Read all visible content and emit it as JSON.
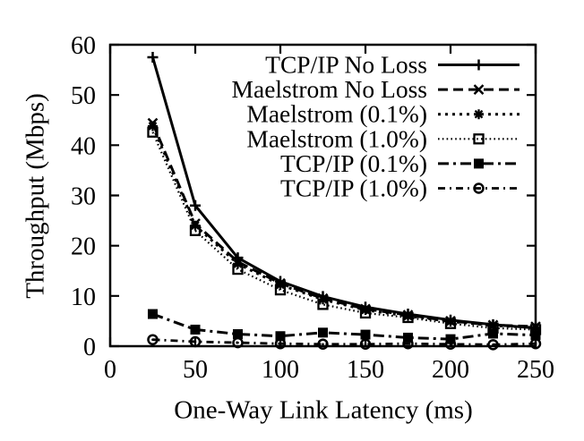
{
  "figure": {
    "background": "#ffffff",
    "ink": "#000000"
  },
  "chart_data": {
    "type": "line",
    "title": "",
    "xlabel": "One-Way Link Latency (ms)",
    "ylabel": "Throughput (Mbps)",
    "xlim": [
      0,
      250
    ],
    "ylim": [
      0,
      60
    ],
    "xticks": [
      0,
      50,
      100,
      150,
      200,
      250
    ],
    "yticks": [
      0,
      10,
      20,
      30,
      40,
      50,
      60
    ],
    "grid": false,
    "legend_position": "top-right-inside",
    "x": [
      25,
      50,
      75,
      100,
      125,
      150,
      175,
      200,
      225,
      250
    ],
    "series": [
      {
        "name": "TCP/IP No Loss",
        "marker": "plus",
        "line": "solid",
        "values": [
          57.5,
          28.0,
          17.6,
          12.9,
          9.9,
          7.8,
          6.4,
          5.2,
          4.3,
          3.6
        ]
      },
      {
        "name": "Maelstrom No Loss",
        "marker": "cross",
        "line": "dashed",
        "values": [
          44.4,
          24.4,
          16.8,
          12.5,
          9.5,
          7.4,
          6.2,
          5.0,
          4.2,
          3.9
        ]
      },
      {
        "name": "Maelstrom (0.1%)",
        "marker": "asterisk",
        "line": "dotted",
        "values": [
          43.8,
          24.0,
          16.4,
          12.2,
          9.3,
          7.2,
          6.0,
          4.9,
          4.1,
          3.7
        ]
      },
      {
        "name": "Maelstrom (1.0%)",
        "marker": "open-square",
        "line": "fine-dotted",
        "values": [
          42.6,
          23.0,
          15.3,
          11.2,
          8.3,
          6.6,
          5.7,
          4.5,
          3.6,
          3.3
        ]
      },
      {
        "name": "TCP/IP (0.1%)",
        "marker": "filled-square",
        "line": "dash-dot",
        "values": [
          6.4,
          3.3,
          2.4,
          2.0,
          2.7,
          2.3,
          1.7,
          1.4,
          2.5,
          2.2
        ]
      },
      {
        "name": "TCP/IP (1.0%)",
        "marker": "dot-circle",
        "line": "dash-dot-dot",
        "values": [
          1.3,
          0.9,
          0.7,
          0.5,
          0.4,
          0.4,
          0.5,
          0.4,
          0.3,
          0.5
        ]
      }
    ]
  }
}
